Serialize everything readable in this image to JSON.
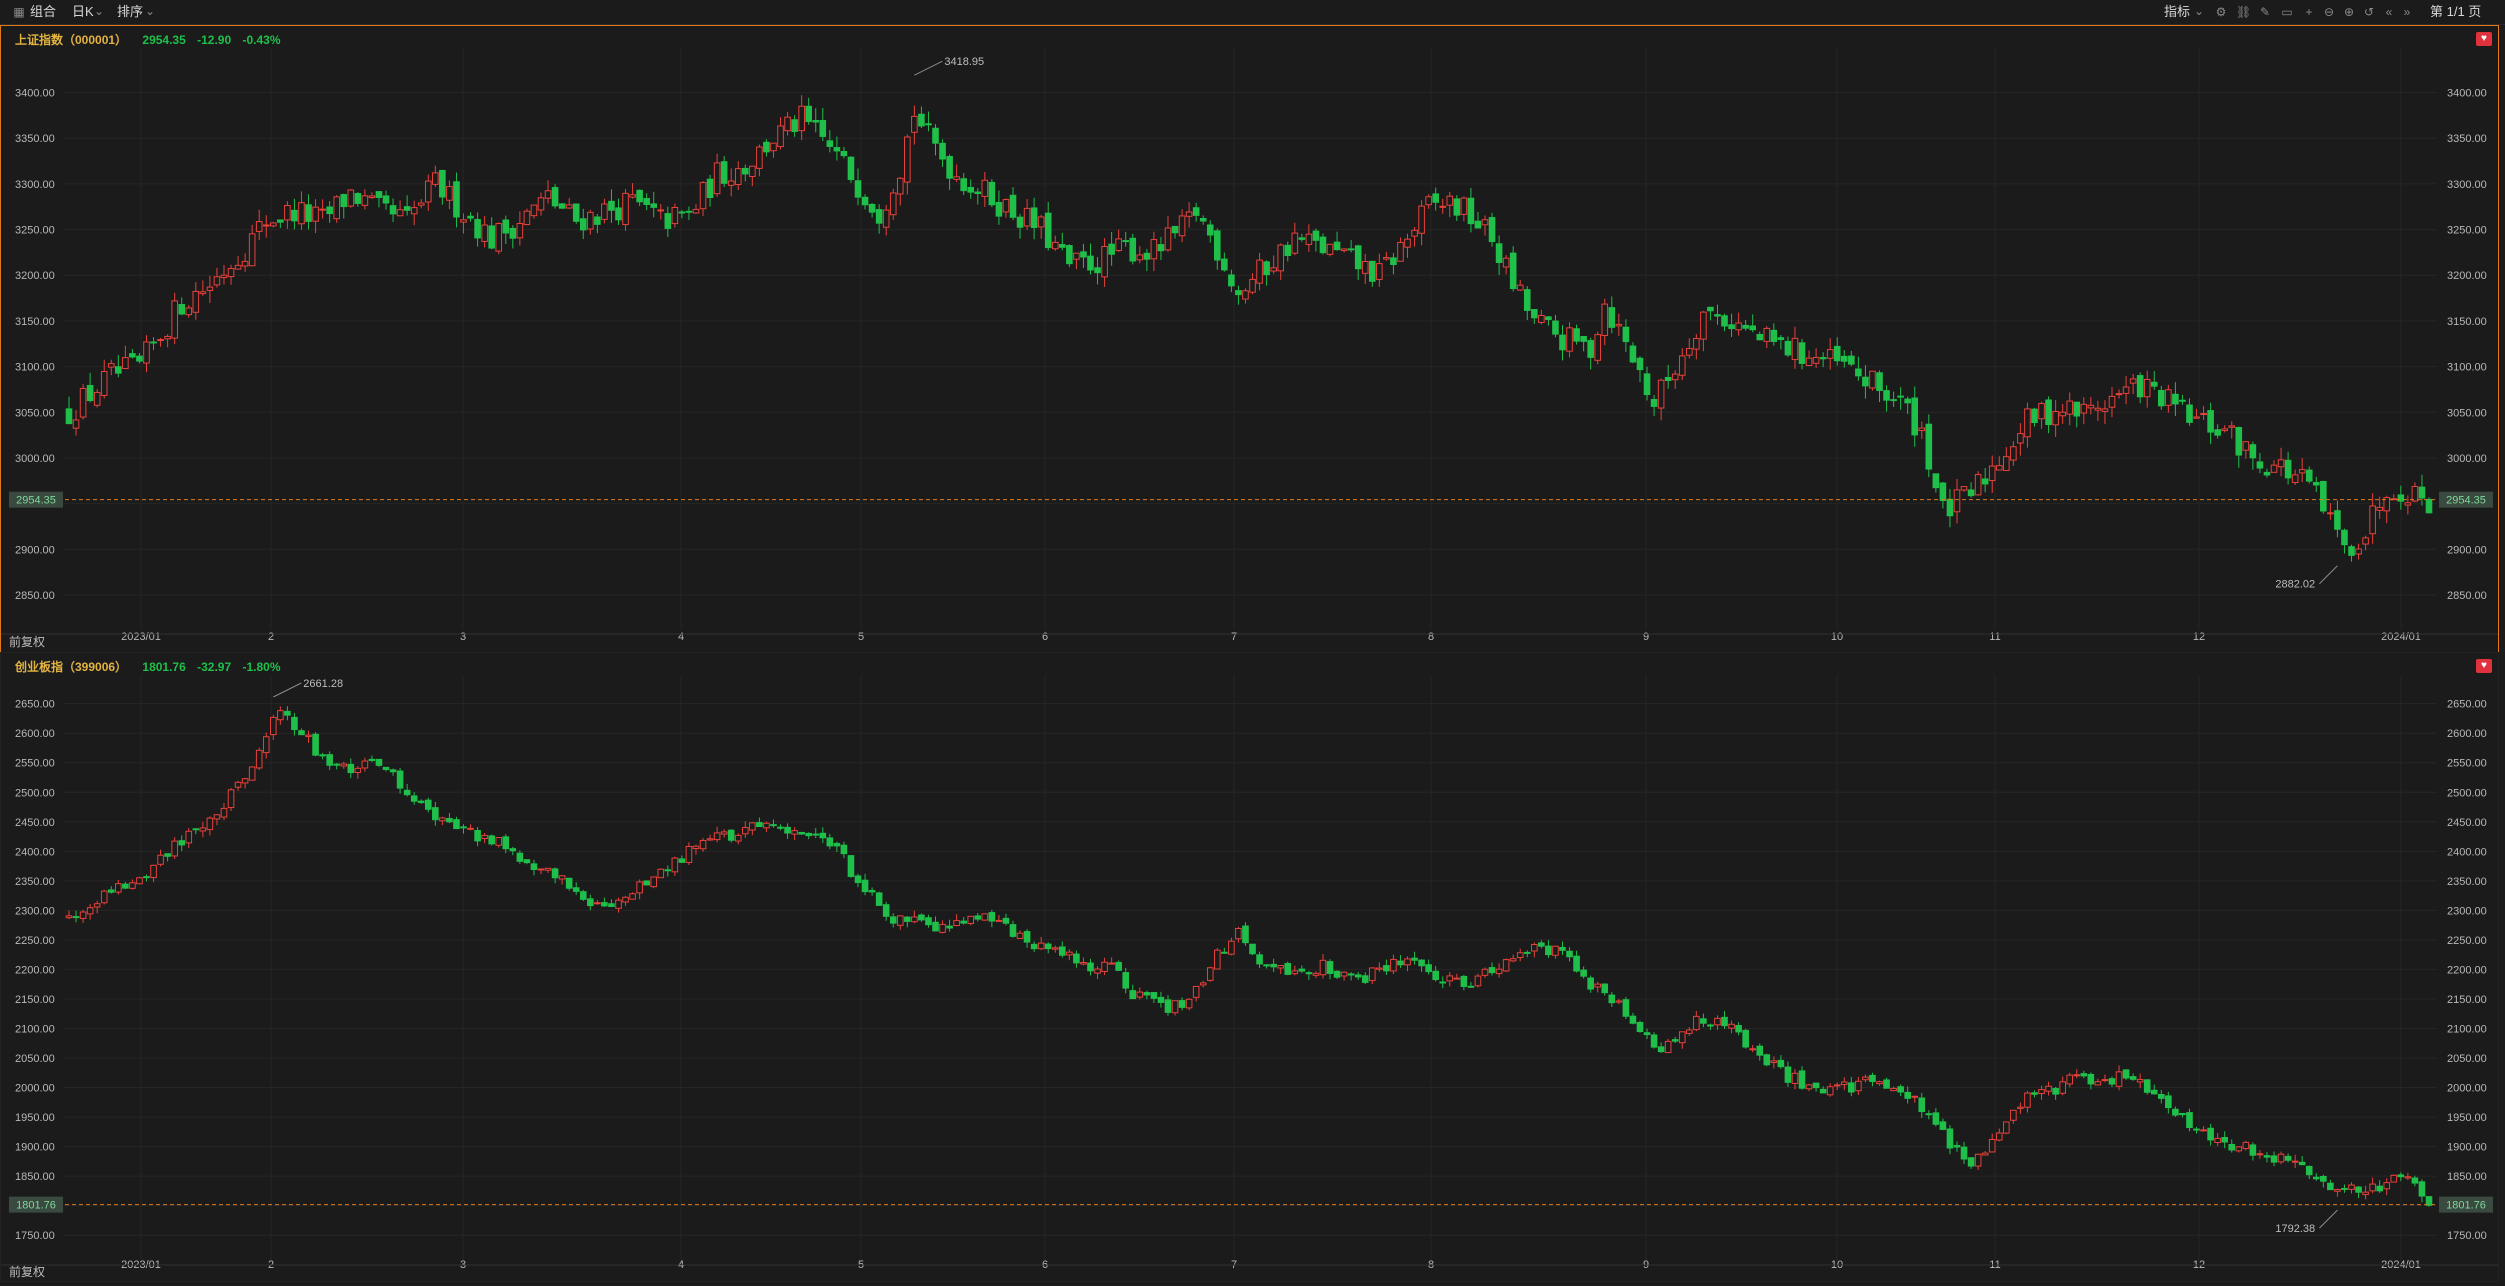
{
  "toolbar": {
    "combo": "组合",
    "period": "日K",
    "sort": "排序",
    "indicator": "指标",
    "page": "第 1/1 页"
  },
  "colors": {
    "up": "#e8413a",
    "down": "#1fbf4a",
    "accent": "#e07a18",
    "title": "#e3b341"
  },
  "panels": [
    {
      "name": "上证指数（000001）",
      "last": "2954.35",
      "change": "-12.90",
      "pct": "-0.43%",
      "restore": "前复权",
      "price_tag": "2954.35",
      "high_label": "3418.95",
      "low_label": "2882.02"
    },
    {
      "name": "创业板指（399006）",
      "last": "1801.76",
      "change": "-32.97",
      "pct": "-1.80%",
      "restore": "前复权",
      "price_tag": "1801.76",
      "high_label": "2661.28",
      "low_label": "1792.38"
    }
  ],
  "chart_data": [
    {
      "type": "candlestick",
      "title": "上证指数（000001）",
      "x_ticks": [
        "2023/01",
        "2",
        "3",
        "4",
        "5",
        "6",
        "7",
        "8",
        "9",
        "10",
        "11",
        "12",
        "2024/01"
      ],
      "y_ticks": [
        2850,
        2900,
        2950,
        3000,
        3050,
        3100,
        3150,
        3200,
        3250,
        3300,
        3350,
        3400
      ],
      "ylim": [
        2827,
        3440
      ],
      "last_price": 2954.35,
      "max": 3418.95,
      "min": 2882.02,
      "close_path": [
        [
          0,
          3050
        ],
        [
          6,
          3090
        ],
        [
          10,
          3100
        ],
        [
          16,
          3170
        ],
        [
          20,
          3190
        ],
        [
          25,
          3230
        ],
        [
          28,
          3260
        ],
        [
          32,
          3270
        ],
        [
          36,
          3260
        ],
        [
          40,
          3290
        ],
        [
          44,
          3270
        ],
        [
          48,
          3260
        ],
        [
          52,
          3300
        ],
        [
          56,
          3270
        ],
        [
          60,
          3240
        ],
        [
          64,
          3260
        ],
        [
          68,
          3285
        ],
        [
          72,
          3260
        ],
        [
          76,
          3270
        ],
        [
          80,
          3280
        ],
        [
          84,
          3260
        ],
        [
          88,
          3265
        ],
        [
          92,
          3310
        ],
        [
          96,
          3320
        ],
        [
          100,
          3350
        ],
        [
          104,
          3370
        ],
        [
          108,
          3340
        ],
        [
          112,
          3300
        ],
        [
          115,
          3270
        ],
        [
          118,
          3320
        ],
        [
          120,
          3380
        ],
        [
          122,
          3350
        ],
        [
          126,
          3310
        ],
        [
          130,
          3290
        ],
        [
          134,
          3270
        ],
        [
          138,
          3250
        ],
        [
          142,
          3210
        ],
        [
          146,
          3215
        ],
        [
          150,
          3230
        ],
        [
          154,
          3225
        ],
        [
          158,
          3250
        ],
        [
          160,
          3270
        ],
        [
          163,
          3230
        ],
        [
          166,
          3180
        ],
        [
          170,
          3210
        ],
        [
          174,
          3240
        ],
        [
          178,
          3230
        ],
        [
          182,
          3215
        ],
        [
          186,
          3200
        ],
        [
          190,
          3240
        ],
        [
          193,
          3275
        ],
        [
          196,
          3280
        ],
        [
          199,
          3265
        ],
        [
          202,
          3240
        ],
        [
          205,
          3190
        ],
        [
          208,
          3150
        ],
        [
          212,
          3130
        ],
        [
          216,
          3120
        ],
        [
          218,
          3170
        ],
        [
          222,
          3110
        ],
        [
          225,
          3060
        ],
        [
          228,
          3100
        ],
        [
          232,
          3160
        ],
        [
          236,
          3150
        ],
        [
          240,
          3130
        ],
        [
          244,
          3120
        ],
        [
          248,
          3110
        ],
        [
          252,
          3100
        ],
        [
          256,
          3080
        ],
        [
          260,
          3060
        ],
        [
          263,
          3030
        ],
        [
          266,
          2940
        ],
        [
          270,
          2960
        ],
        [
          274,
          3000
        ],
        [
          278,
          3040
        ],
        [
          282,
          3055
        ],
        [
          286,
          3050
        ],
        [
          290,
          3065
        ],
        [
          294,
          3080
        ],
        [
          298,
          3060
        ],
        [
          302,
          3040
        ],
        [
          306,
          3030
        ],
        [
          310,
          3000
        ],
        [
          314,
          2990
        ],
        [
          318,
          2970
        ],
        [
          321,
          2930
        ],
        [
          323,
          2900
        ],
        [
          326,
          2920
        ],
        [
          329,
          2970
        ],
        [
          332,
          2965
        ],
        [
          335,
          2954
        ]
      ],
      "events": [
        [
          120,
          3418.95
        ],
        [
          322,
          2882.02
        ]
      ]
    },
    {
      "type": "candlestick",
      "title": "创业板指（399006）",
      "x_ticks": [
        "2023/01",
        "2",
        "3",
        "4",
        "5",
        "6",
        "7",
        "8",
        "9",
        "10",
        "11",
        "12",
        "2024/01"
      ],
      "y_ticks": [
        1750,
        1800,
        1850,
        1900,
        1950,
        2000,
        2050,
        2100,
        2150,
        2200,
        2250,
        2300,
        2350,
        2400,
        2450,
        2500,
        2550,
        2600,
        2650
      ],
      "ylim": [
        1730,
        2685
      ],
      "last_price": 1801.76,
      "max": 2661.28,
      "min": 1792.38,
      "close_path": [
        [
          0,
          2290
        ],
        [
          6,
          2340
        ],
        [
          10,
          2350
        ],
        [
          14,
          2400
        ],
        [
          18,
          2440
        ],
        [
          22,
          2480
        ],
        [
          26,
          2550
        ],
        [
          28,
          2600
        ],
        [
          30,
          2640
        ],
        [
          33,
          2600
        ],
        [
          36,
          2560
        ],
        [
          40,
          2540
        ],
        [
          44,
          2550
        ],
        [
          48,
          2500
        ],
        [
          52,
          2460
        ],
        [
          56,
          2430
        ],
        [
          60,
          2420
        ],
        [
          64,
          2390
        ],
        [
          68,
          2370
        ],
        [
          72,
          2340
        ],
        [
          76,
          2300
        ],
        [
          80,
          2330
        ],
        [
          84,
          2370
        ],
        [
          88,
          2400
        ],
        [
          92,
          2420
        ],
        [
          96,
          2440
        ],
        [
          100,
          2450
        ],
        [
          104,
          2430
        ],
        [
          108,
          2420
        ],
        [
          112,
          2350
        ],
        [
          116,
          2290
        ],
        [
          120,
          2280
        ],
        [
          124,
          2270
        ],
        [
          128,
          2290
        ],
        [
          132,
          2280
        ],
        [
          136,
          2250
        ],
        [
          140,
          2230
        ],
        [
          144,
          2210
        ],
        [
          148,
          2200
        ],
        [
          152,
          2150
        ],
        [
          156,
          2130
        ],
        [
          160,
          2160
        ],
        [
          163,
          2230
        ],
        [
          166,
          2260
        ],
        [
          170,
          2200
        ],
        [
          174,
          2190
        ],
        [
          178,
          2210
        ],
        [
          182,
          2180
        ],
        [
          186,
          2200
        ],
        [
          190,
          2210
        ],
        [
          194,
          2190
        ],
        [
          198,
          2170
        ],
        [
          202,
          2200
        ],
        [
          206,
          2230
        ],
        [
          209,
          2240
        ],
        [
          212,
          2230
        ],
        [
          215,
          2180
        ],
        [
          219,
          2150
        ],
        [
          223,
          2100
        ],
        [
          226,
          2050
        ],
        [
          229,
          2100
        ],
        [
          232,
          2120
        ],
        [
          236,
          2100
        ],
        [
          240,
          2060
        ],
        [
          244,
          2020
        ],
        [
          248,
          2000
        ],
        [
          252,
          2000
        ],
        [
          256,
          2010
        ],
        [
          260,
          1990
        ],
        [
          264,
          1960
        ],
        [
          267,
          1900
        ],
        [
          270,
          1870
        ],
        [
          273,
          1900
        ],
        [
          276,
          1970
        ],
        [
          280,
          1990
        ],
        [
          284,
          2010
        ],
        [
          288,
          2010
        ],
        [
          292,
          2020
        ],
        [
          296,
          1990
        ],
        [
          300,
          1950
        ],
        [
          304,
          1920
        ],
        [
          308,
          1900
        ],
        [
          312,
          1890
        ],
        [
          316,
          1870
        ],
        [
          319,
          1840
        ],
        [
          322,
          1830
        ],
        [
          326,
          1825
        ],
        [
          329,
          1840
        ],
        [
          332,
          1860
        ],
        [
          335,
          1802
        ]
      ],
      "events": [
        [
          29,
          2661.28
        ],
        [
          322,
          1792.38
        ]
      ]
    }
  ]
}
